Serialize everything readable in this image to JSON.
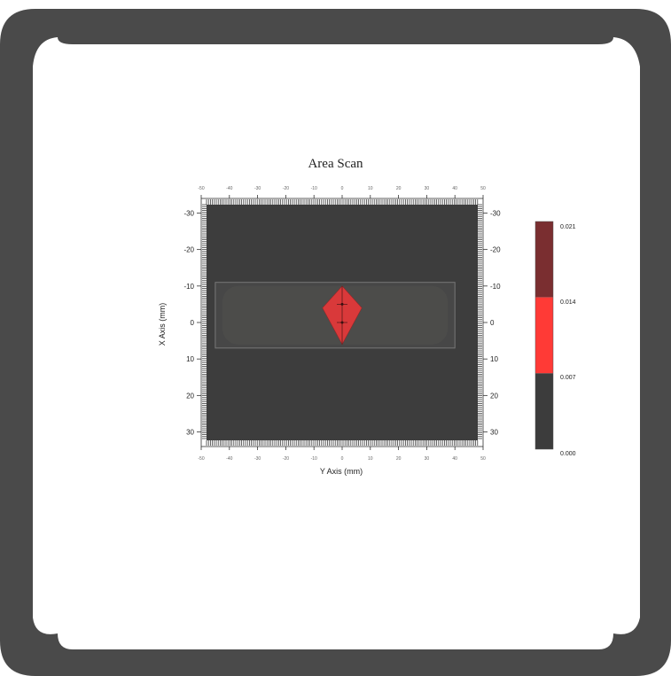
{
  "chart_data": {
    "type": "heatmap",
    "title": "Area Scan",
    "xlabel": "Y Axis (mm)",
    "ylabel": "X Axis (mm)",
    "x_ticks": [
      -50,
      -40,
      -30,
      -20,
      -10,
      0,
      10,
      20,
      30,
      40,
      50
    ],
    "y_ticks": [
      -30,
      -20,
      -10,
      0,
      10,
      20,
      30
    ],
    "xlim": [
      -50,
      50
    ],
    "ylim": [
      -34,
      34
    ],
    "y_inverted": true,
    "scan_region": {
      "x": [
        -45,
        40
      ],
      "y": [
        -11,
        7
      ]
    },
    "hotspot": {
      "value_band": [
        0.007,
        0.014
      ],
      "polygon": [
        [
          0,
          -10
        ],
        [
          7,
          -4
        ],
        [
          0,
          6
        ],
        [
          -7,
          -4
        ]
      ],
      "markers": [
        [
          0,
          -5
        ],
        [
          0,
          0
        ]
      ]
    },
    "colorbar": {
      "ticks": [
        "0.021",
        "0.014",
        "0.007",
        "0.000"
      ],
      "bands": [
        {
          "from": 0.014,
          "to": 0.021,
          "color": "#7a2e30"
        },
        {
          "from": 0.007,
          "to": 0.014,
          "color": "#ff3a36"
        },
        {
          "from": 0.0,
          "to": 0.007,
          "color": "#3c3c3c"
        }
      ]
    },
    "background_color": "#3d3d3d"
  }
}
